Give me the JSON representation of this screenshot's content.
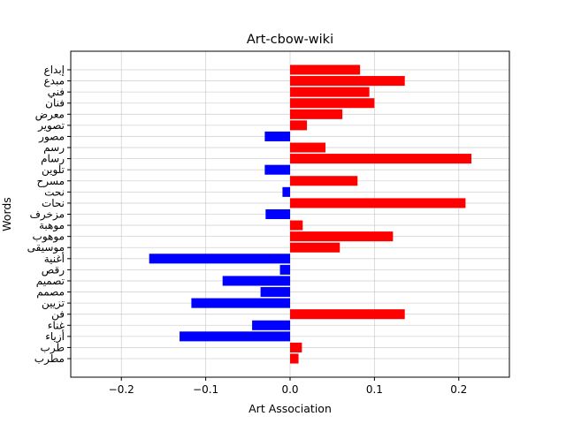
{
  "chart_data": {
    "type": "bar",
    "orientation": "horizontal",
    "title": "Art-cbow-wiki",
    "xlabel": "Art Association",
    "ylabel": "Words",
    "xlim": [
      -0.26,
      0.26
    ],
    "xticks": [
      -0.2,
      -0.1,
      0.0,
      0.1,
      0.2
    ],
    "xtick_labels": [
      "−0.2",
      "−0.1",
      "0.0",
      "0.1",
      "0.2"
    ],
    "grid": true,
    "positive_color": "#ff0000",
    "negative_color": "#0000ff",
    "categories": [
      "إبداع",
      "مبدع",
      "فني",
      "فنان",
      "معرض",
      "تصوير",
      "مصور",
      "رسم",
      "رسام",
      "تلوين",
      "مسرح",
      "نحت",
      "نحات",
      "مزخرف",
      "موهبة",
      "موهوب",
      "موسيقى",
      "أغنية",
      "رقص",
      "تصميم",
      "مصمم",
      "تزيين",
      "فن",
      "غناء",
      "أزياء",
      "طرب",
      "مطرب"
    ],
    "values": [
      0.083,
      0.136,
      0.094,
      0.1,
      0.062,
      0.02,
      -0.03,
      0.042,
      0.215,
      -0.03,
      0.08,
      -0.009,
      0.208,
      -0.029,
      0.015,
      0.122,
      0.059,
      -0.167,
      -0.012,
      -0.08,
      -0.035,
      -0.117,
      0.136,
      -0.045,
      -0.131,
      0.014,
      0.01
    ]
  }
}
